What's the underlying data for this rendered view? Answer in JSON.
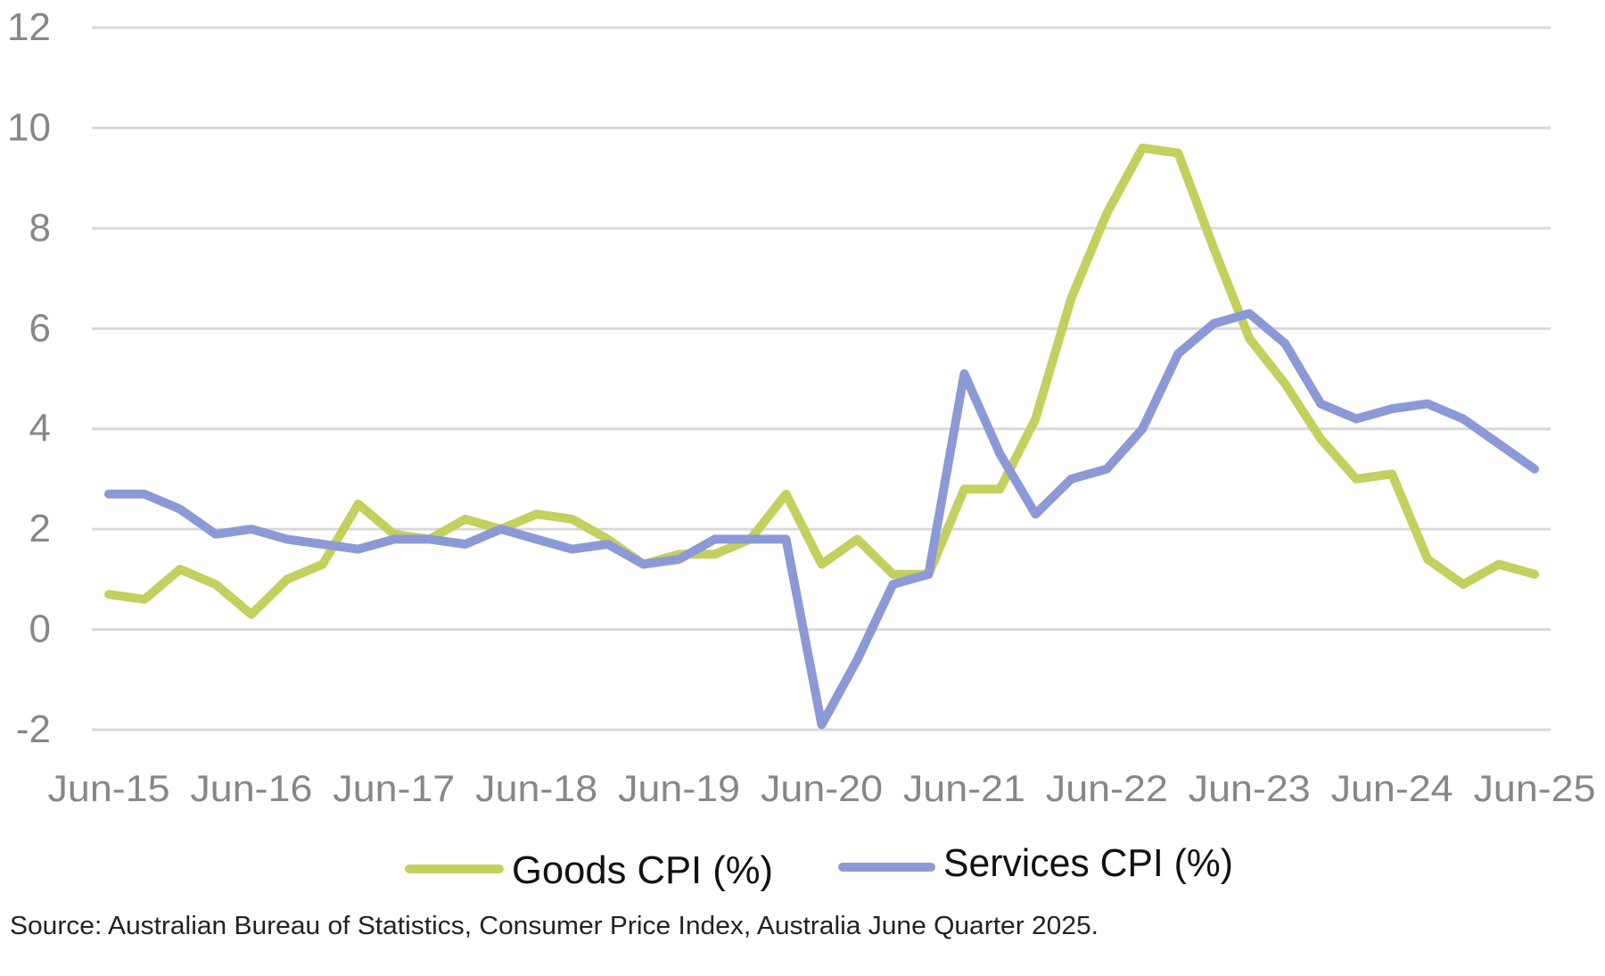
{
  "chart_data": {
    "type": "line",
    "title": "",
    "xlabel": "",
    "ylabel": "",
    "ylim": [
      -2,
      12
    ],
    "yticks": [
      "12",
      "10",
      "8",
      "6",
      "4",
      "2",
      "0",
      "-2"
    ],
    "ytick_values": [
      12,
      10,
      8,
      6,
      4,
      2,
      0,
      -2
    ],
    "grid": true,
    "legend_position": "bottom",
    "x": [
      "Jun-15",
      "Sep-15",
      "Dec-15",
      "Mar-16",
      "Jun-16",
      "Sep-16",
      "Dec-16",
      "Mar-17",
      "Jun-17",
      "Sep-17",
      "Dec-17",
      "Mar-18",
      "Jun-18",
      "Sep-18",
      "Dec-18",
      "Mar-19",
      "Jun-19",
      "Sep-19",
      "Dec-19",
      "Mar-20",
      "Jun-20",
      "Sep-20",
      "Dec-20",
      "Mar-21",
      "Jun-21",
      "Sep-21",
      "Dec-21",
      "Mar-22",
      "Jun-22",
      "Sep-22",
      "Dec-22",
      "Mar-23",
      "Jun-23",
      "Sep-23",
      "Dec-23",
      "Mar-24",
      "Jun-24",
      "Sep-24",
      "Dec-24",
      "Mar-25",
      "Jun-25"
    ],
    "xtick_labels": [
      "Jun-15",
      "Jun-16",
      "Jun-17",
      "Jun-18",
      "Jun-19",
      "Jun-20",
      "Jun-21",
      "Jun-22",
      "Jun-23",
      "Jun-24",
      "Jun-25"
    ],
    "series": [
      {
        "name": "Goods CPI (%)",
        "color": "#c3d05e",
        "values": [
          0.7,
          0.6,
          1.2,
          0.9,
          0.3,
          1.0,
          1.3,
          2.5,
          1.9,
          1.8,
          2.2,
          2.0,
          2.3,
          2.2,
          1.8,
          1.3,
          1.5,
          1.5,
          1.8,
          2.7,
          1.3,
          1.8,
          1.1,
          1.1,
          2.8,
          2.8,
          4.2,
          6.6,
          8.3,
          9.6,
          9.5,
          7.6,
          5.8,
          4.9,
          3.8,
          3.0,
          3.1,
          1.4,
          0.9,
          1.3,
          1.1
        ]
      },
      {
        "name": "Services CPI (%)",
        "color": "#8b9ad6",
        "values": [
          2.7,
          2.7,
          2.4,
          1.9,
          2.0,
          1.8,
          1.7,
          1.6,
          1.8,
          1.8,
          1.7,
          2.0,
          1.8,
          1.6,
          1.7,
          1.3,
          1.4,
          1.8,
          1.8,
          1.8,
          -1.9,
          -0.6,
          0.9,
          1.1,
          5.1,
          3.5,
          2.3,
          3.0,
          3.2,
          4.0,
          5.5,
          6.1,
          6.3,
          5.7,
          4.5,
          4.2,
          4.4,
          4.5,
          4.2,
          3.7,
          3.2
        ]
      }
    ]
  },
  "source_note": "Source: Australian Bureau of Statistics, Consumer Price Index, Australia June Quarter 2025."
}
